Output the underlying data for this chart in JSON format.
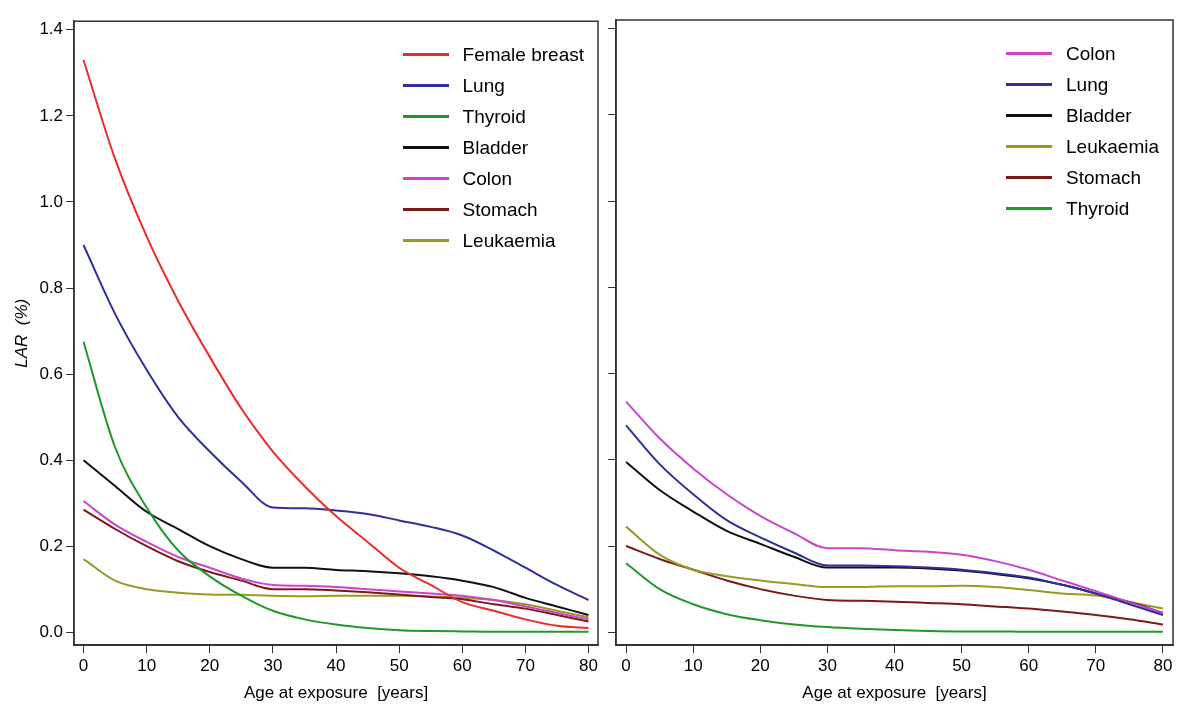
{
  "chart_data": [
    {
      "type": "line",
      "xlabel": "Age at exposure  [years]",
      "ylabel": "LAR  (%)",
      "x": [
        0,
        5,
        10,
        15,
        20,
        25,
        30,
        35,
        40,
        45,
        50,
        55,
        60,
        65,
        70,
        75,
        80
      ],
      "xlim": [
        -1.5,
        81.5
      ],
      "ylim": [
        -0.03,
        1.42
      ],
      "xticks": [
        0,
        10,
        20,
        30,
        40,
        50,
        60,
        70,
        80
      ],
      "yticks": [
        {
          "value": 0,
          "label": "0.0"
        },
        {
          "value": 0.2,
          "label": "0.2"
        },
        {
          "value": 0.4,
          "label": "0.4"
        },
        {
          "value": 0.6,
          "label": "0.6"
        },
        {
          "value": 0.8,
          "label": "0.8"
        },
        {
          "value": 1,
          "label": "1.0"
        },
        {
          "value": 1.2,
          "label": "1.2"
        },
        {
          "value": 1.4,
          "label": "1.4"
        }
      ],
      "grid": false,
      "legend": "top right",
      "series": [
        {
          "name": "Female breast",
          "color": "#ee2a2a",
          "values": [
            1.33,
            1.1,
            0.92,
            0.77,
            0.64,
            0.52,
            0.42,
            0.34,
            0.27,
            0.21,
            0.15,
            0.11,
            0.07,
            0.05,
            0.03,
            0.015,
            0.01
          ]
        },
        {
          "name": "Lung",
          "color": "#30309a",
          "values": [
            0.9,
            0.74,
            0.61,
            0.5,
            0.42,
            0.35,
            0.29,
            0.288,
            0.283,
            0.275,
            0.26,
            0.245,
            0.225,
            0.19,
            0.15,
            0.11,
            0.075
          ]
        },
        {
          "name": "Thyroid",
          "color": "#1e9a2a",
          "values": [
            0.675,
            0.43,
            0.29,
            0.19,
            0.13,
            0.085,
            0.05,
            0.03,
            0.018,
            0.01,
            0.005,
            0.003,
            0.002,
            0.001,
            0.001,
            0.001,
            0.001
          ]
        },
        {
          "name": "Bladder",
          "color": "#111111",
          "values": [
            0.4,
            0.34,
            0.28,
            0.24,
            0.2,
            0.17,
            0.15,
            0.15,
            0.145,
            0.142,
            0.137,
            0.13,
            0.12,
            0.105,
            0.08,
            0.06,
            0.04
          ]
        },
        {
          "name": "Colon",
          "color": "#cc44cc",
          "values": [
            0.305,
            0.25,
            0.21,
            0.175,
            0.15,
            0.125,
            0.11,
            0.108,
            0.105,
            0.1,
            0.095,
            0.09,
            0.085,
            0.075,
            0.06,
            0.045,
            0.03
          ]
        },
        {
          "name": "Stomach",
          "color": "#7a1a1a",
          "values": [
            0.285,
            0.24,
            0.2,
            0.165,
            0.14,
            0.12,
            0.1,
            0.1,
            0.097,
            0.093,
            0.088,
            0.082,
            0.077,
            0.065,
            0.055,
            0.04,
            0.025
          ]
        },
        {
          "name": "Leukaemia",
          "color": "#999922",
          "values": [
            0.17,
            0.12,
            0.1,
            0.092,
            0.088,
            0.087,
            0.085,
            0.084,
            0.085,
            0.085,
            0.085,
            0.083,
            0.08,
            0.075,
            0.065,
            0.05,
            0.035
          ]
        }
      ]
    },
    {
      "type": "line",
      "xlabel": "Age at exposure  [years]",
      "x": [
        0,
        5,
        10,
        15,
        20,
        25,
        30,
        35,
        40,
        45,
        50,
        55,
        60,
        65,
        70,
        75,
        80
      ],
      "xlim": [
        -1.5,
        81.5
      ],
      "ylim": [
        -0.03,
        1.42
      ],
      "xticks": [
        0,
        10,
        20,
        30,
        40,
        50,
        60,
        70,
        80
      ],
      "yticks": [
        {
          "value": 0,
          "label": null
        },
        {
          "value": 0.2,
          "label": null
        },
        {
          "value": 0.4,
          "label": null
        },
        {
          "value": 0.6,
          "label": null
        },
        {
          "value": 0.8,
          "label": null
        },
        {
          "value": 1,
          "label": null
        },
        {
          "value": 1.2,
          "label": null
        },
        {
          "value": 1.4,
          "label": null
        }
      ],
      "tick_labels": "x",
      "grid": false,
      "legend": "top right",
      "series": [
        {
          "name": "Colon",
          "color": "#cc44cc",
          "values": [
            0.535,
            0.45,
            0.38,
            0.32,
            0.27,
            0.23,
            0.195,
            0.195,
            0.19,
            0.187,
            0.18,
            0.165,
            0.145,
            0.12,
            0.095,
            0.07,
            0.045
          ]
        },
        {
          "name": "Lung",
          "color": "#30309a",
          "values": [
            0.48,
            0.39,
            0.32,
            0.26,
            0.22,
            0.185,
            0.155,
            0.155,
            0.153,
            0.15,
            0.145,
            0.137,
            0.127,
            0.11,
            0.09,
            0.065,
            0.04
          ]
        },
        {
          "name": "Bladder",
          "color": "#111111",
          "values": [
            0.395,
            0.33,
            0.28,
            0.235,
            0.205,
            0.175,
            0.15,
            0.15,
            0.15,
            0.148,
            0.143,
            0.135,
            0.125,
            0.11,
            0.09,
            0.07,
            0.045
          ]
        },
        {
          "name": "Leukaemia",
          "color": "#999922",
          "values": [
            0.245,
            0.18,
            0.145,
            0.13,
            0.12,
            0.112,
            0.105,
            0.105,
            0.107,
            0.107,
            0.108,
            0.105,
            0.098,
            0.09,
            0.085,
            0.07,
            0.055
          ]
        },
        {
          "name": "Stomach",
          "color": "#7a1a1a",
          "values": [
            0.2,
            0.17,
            0.145,
            0.12,
            0.1,
            0.085,
            0.075,
            0.073,
            0.071,
            0.068,
            0.065,
            0.06,
            0.055,
            0.048,
            0.04,
            0.03,
            0.018
          ]
        },
        {
          "name": "Thyroid",
          "color": "#1e9a2a",
          "values": [
            0.16,
            0.1,
            0.065,
            0.042,
            0.028,
            0.018,
            0.012,
            0.008,
            0.005,
            0.003,
            0.002,
            0.002,
            0.001,
            0.001,
            0.001,
            0.001,
            0.001
          ]
        }
      ]
    }
  ]
}
